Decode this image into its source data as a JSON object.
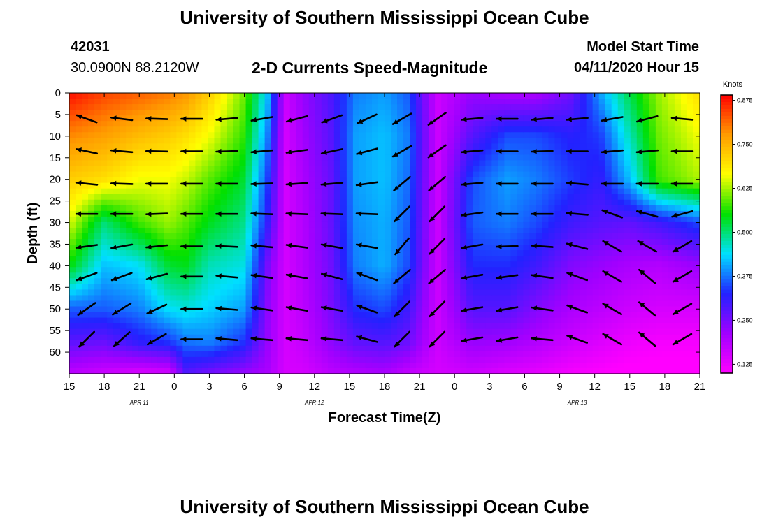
{
  "header": {
    "title": "University of Southern Mississippi Ocean Cube",
    "station_id": "42031",
    "location": "30.0900N 88.2120W",
    "product": "2-D Currents Speed-Magnitude",
    "model_start_label": "Model Start Time",
    "model_start_value": "04/11/2020 Hour 15"
  },
  "footer": {
    "title": "University of Southern Mississippi Ocean Cube"
  },
  "chart_data": {
    "type": "heatmap",
    "title": "2-D Currents Speed-Magnitude",
    "xlabel": "Forecast Time(Z)",
    "ylabel": "Depth (ft)",
    "x_range_hours": [
      0,
      54
    ],
    "x_ticks": [
      "15",
      "18",
      "21",
      "0",
      "3",
      "6",
      "9",
      "12",
      "15",
      "18",
      "21",
      "0",
      "3",
      "6",
      "9",
      "12",
      "15",
      "18",
      "21"
    ],
    "date_labels": [
      {
        "text": "APR 11",
        "hour": 6
      },
      {
        "text": "APR 12",
        "hour": 21
      },
      {
        "text": "APR 13",
        "hour": 43.5
      }
    ],
    "y_range": [
      0,
      65
    ],
    "y_ticks": [
      "0",
      "5",
      "10",
      "15",
      "20",
      "25",
      "30",
      "35",
      "40",
      "45",
      "50",
      "55",
      "60"
    ],
    "colorbar": {
      "label": "Knots",
      "min": 0.1,
      "max": 0.89,
      "ticks": [
        "0.875",
        "0.750",
        "0.625",
        "0.500",
        "0.375",
        "0.250",
        "0.125"
      ],
      "tick_values": [
        0.875,
        0.75,
        0.625,
        0.5,
        0.375,
        0.25,
        0.125
      ],
      "colors": [
        "#ff00ff",
        "#a100ff",
        "#2222ff",
        "#00e0ff",
        "#00e000",
        "#ffff00",
        "#ff9a00",
        "#ff0000"
      ]
    },
    "speed_hours": [
      0,
      3,
      6,
      8.5,
      10,
      12,
      15,
      17,
      18.5,
      20,
      22.5,
      24.5,
      27,
      29,
      31.5,
      34.5,
      37.5,
      40,
      43,
      45.5,
      48,
      50.5,
      54
    ],
    "speed_depths": [
      0,
      10,
      20,
      30,
      40,
      50,
      58,
      65
    ],
    "speed_knots": [
      [
        0.88,
        0.79,
        0.72,
        0.65,
        0.55,
        0.36,
        0.27,
        0.18
      ],
      [
        0.84,
        0.77,
        0.7,
        0.5,
        0.42,
        0.36,
        0.26,
        0.16
      ],
      [
        0.82,
        0.74,
        0.66,
        0.58,
        0.44,
        0.38,
        0.31,
        0.14
      ],
      [
        0.8,
        0.72,
        0.66,
        0.62,
        0.53,
        0.44,
        0.33,
        0.15
      ],
      [
        0.78,
        0.7,
        0.64,
        0.59,
        0.54,
        0.45,
        0.37,
        0.28
      ],
      [
        0.72,
        0.66,
        0.59,
        0.54,
        0.47,
        0.43,
        0.38,
        0.25
      ],
      [
        0.6,
        0.57,
        0.53,
        0.49,
        0.45,
        0.4,
        0.33,
        0.22
      ],
      [
        0.42,
        0.38,
        0.34,
        0.31,
        0.25,
        0.23,
        0.22,
        0.2
      ],
      [
        0.16,
        0.15,
        0.15,
        0.15,
        0.15,
        0.15,
        0.15,
        0.15
      ],
      [
        0.22,
        0.21,
        0.2,
        0.19,
        0.19,
        0.18,
        0.17,
        0.15
      ],
      [
        0.29,
        0.28,
        0.27,
        0.27,
        0.26,
        0.25,
        0.23,
        0.18
      ],
      [
        0.38,
        0.4,
        0.4,
        0.39,
        0.38,
        0.33,
        0.27,
        0.19
      ],
      [
        0.4,
        0.42,
        0.42,
        0.41,
        0.41,
        0.35,
        0.28,
        0.2
      ],
      [
        0.36,
        0.38,
        0.37,
        0.36,
        0.35,
        0.3,
        0.26,
        0.17
      ],
      [
        0.16,
        0.16,
        0.16,
        0.16,
        0.16,
        0.16,
        0.16,
        0.15
      ],
      [
        0.22,
        0.28,
        0.35,
        0.36,
        0.33,
        0.28,
        0.22,
        0.16
      ],
      [
        0.2,
        0.35,
        0.4,
        0.38,
        0.33,
        0.28,
        0.21,
        0.14
      ],
      [
        0.2,
        0.35,
        0.38,
        0.35,
        0.3,
        0.24,
        0.19,
        0.13
      ],
      [
        0.26,
        0.32,
        0.34,
        0.3,
        0.24,
        0.2,
        0.16,
        0.11
      ],
      [
        0.4,
        0.34,
        0.31,
        0.28,
        0.22,
        0.18,
        0.14,
        0.1
      ],
      [
        0.52,
        0.47,
        0.42,
        0.27,
        0.2,
        0.16,
        0.12,
        0.09
      ],
      [
        0.62,
        0.6,
        0.58,
        0.3,
        0.19,
        0.15,
        0.11,
        0.09
      ],
      [
        0.7,
        0.66,
        0.63,
        0.35,
        0.22,
        0.15,
        0.11,
        0.09
      ]
    ],
    "arrow_hours": [
      1.5,
      4.5,
      7.5,
      10.5,
      13.5,
      16.5,
      19.5,
      22.5,
      25.5,
      28.5,
      31.5,
      34.5,
      37.5,
      40.5,
      43.5,
      46.5,
      49.5,
      52.5
    ],
    "arrow_depths": [
      6,
      13.5,
      21,
      28,
      35.5,
      42.5,
      50,
      57
    ],
    "arrow_dir_deg": [
      [
        160,
        168,
        174,
        180,
        188,
        200,
        215,
        225
      ],
      [
        173,
        175,
        178,
        180,
        190,
        200,
        212,
        222
      ],
      [
        178,
        179,
        180,
        182,
        186,
        195,
        205,
        210
      ],
      [
        180,
        180,
        180,
        180,
        180,
        180,
        180,
        180
      ],
      [
        185,
        182,
        180,
        180,
        177,
        175,
        175,
        175
      ],
      [
        190,
        185,
        182,
        178,
        175,
        172,
        172,
        175
      ],
      [
        195,
        188,
        184,
        178,
        172,
        170,
        170,
        175
      ],
      [
        200,
        192,
        185,
        178,
        170,
        165,
        170,
        175
      ],
      [
        205,
        195,
        188,
        178,
        170,
        160,
        160,
        165
      ],
      [
        210,
        210,
        220,
        225,
        230,
        220,
        225,
        225
      ],
      [
        215,
        215,
        220,
        225,
        225,
        220,
        225,
        225
      ],
      [
        185,
        185,
        185,
        188,
        190,
        190,
        190,
        190
      ],
      [
        180,
        180,
        180,
        180,
        182,
        188,
        190,
        190
      ],
      [
        185,
        182,
        180,
        180,
        176,
        172,
        172,
        175
      ],
      [
        185,
        180,
        175,
        175,
        165,
        160,
        160,
        160
      ],
      [
        190,
        185,
        180,
        160,
        150,
        150,
        150,
        150
      ],
      [
        195,
        185,
        180,
        165,
        150,
        140,
        140,
        140
      ],
      [
        175,
        180,
        180,
        195,
        210,
        210,
        210,
        210
      ]
    ]
  }
}
